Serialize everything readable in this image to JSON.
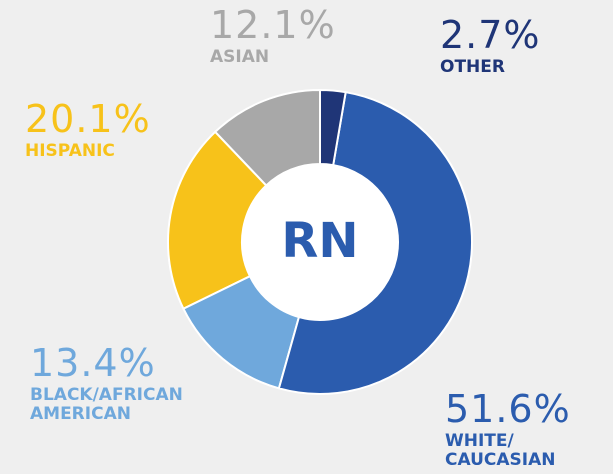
{
  "chart_data": {
    "type": "donut",
    "center_label": "RN",
    "categories": [
      "OTHER",
      "WHITE/ CAUCASIAN",
      "BLACK/AFRICAN AMERICAN",
      "HISPANIC",
      "ASIAN"
    ],
    "values": [
      2.7,
      51.6,
      13.4,
      20.1,
      12.1
    ],
    "value_labels": [
      "2.7%",
      "51.6%",
      "13.4%",
      "20.1%",
      "12.1%"
    ],
    "colors": [
      "#1f3577",
      "#2b5cae",
      "#6fa8dc",
      "#f7c21a",
      "#a8a8a8"
    ]
  }
}
